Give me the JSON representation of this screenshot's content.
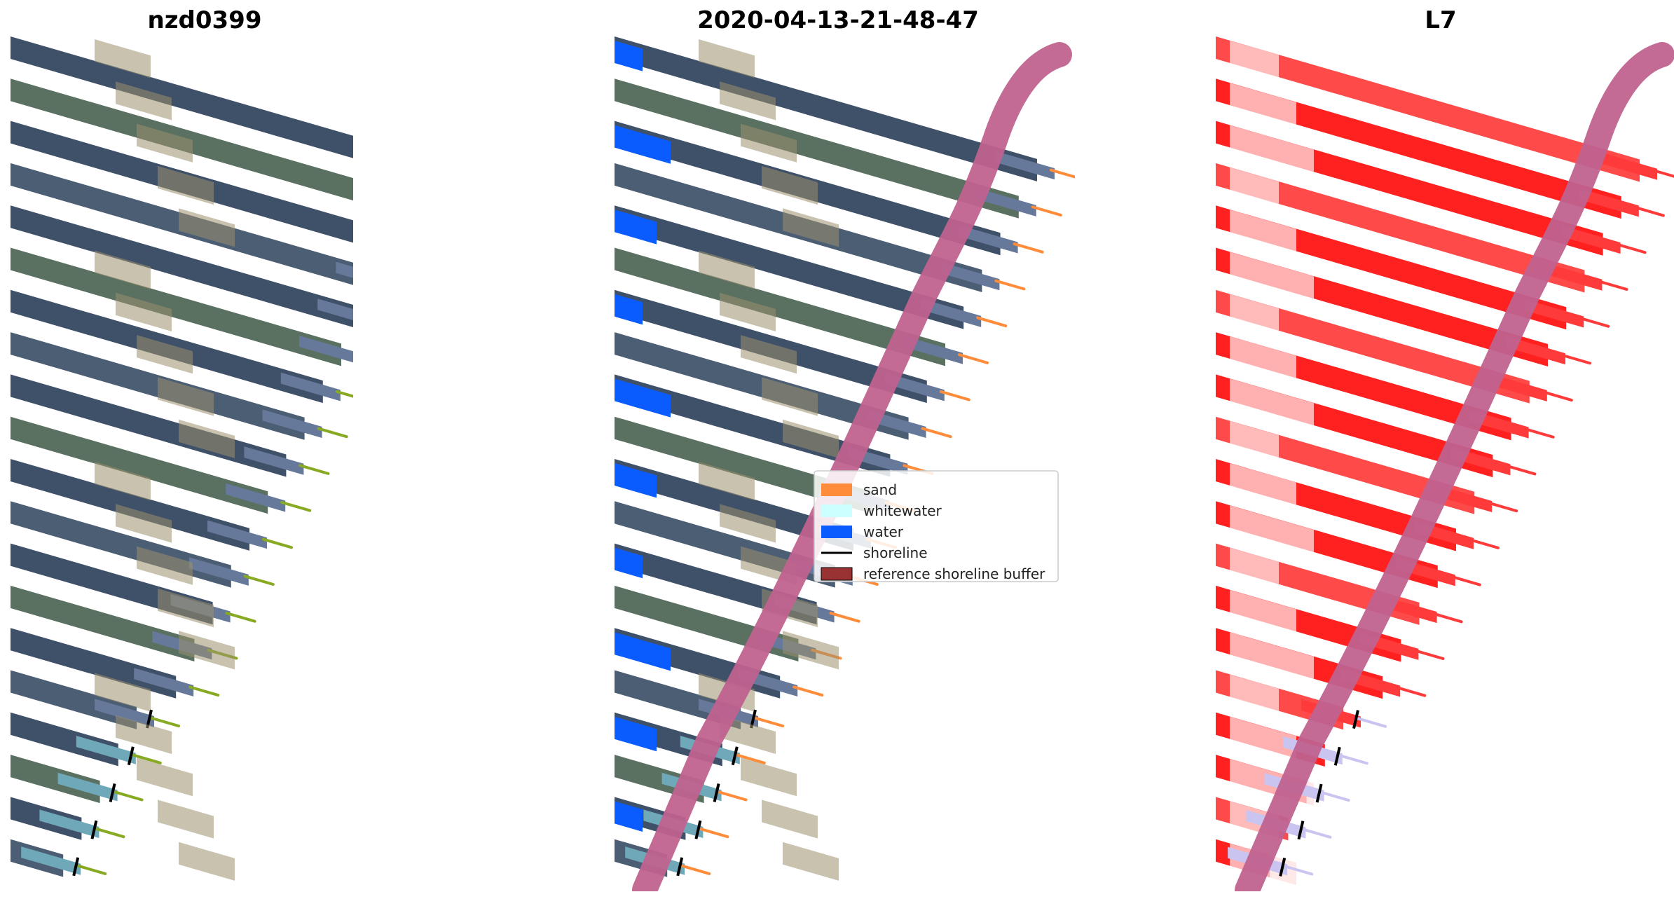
{
  "figure": {
    "panels": [
      {
        "title": "nzd0399",
        "kind": "rgb"
      },
      {
        "title": "2020-04-13-21-48-47",
        "kind": "classified"
      },
      {
        "title": "L7",
        "kind": "index"
      }
    ],
    "legend": {
      "items": [
        {
          "label": "sand",
          "color": "#ff8c3a",
          "type": "patch"
        },
        {
          "label": "whitewater",
          "color": "#ccffff",
          "type": "patch"
        },
        {
          "label": "water",
          "color": "#0a5cff",
          "type": "patch"
        },
        {
          "label": "shoreline",
          "color": "#000000",
          "type": "line"
        },
        {
          "label": "reference shoreline buffer",
          "color": "#993333",
          "type": "patch"
        }
      ]
    },
    "colors": {
      "imagery_dark": "#3f5069",
      "imagery_green": "#5a7060",
      "imagery_tan": "#9a8f6e",
      "buffer": "#c0628f",
      "index_red": "#ff2020",
      "index_light": "#ffe0e0",
      "shallow_water": "#6fa8b8",
      "transect_tip": "#88aa22"
    }
  }
}
